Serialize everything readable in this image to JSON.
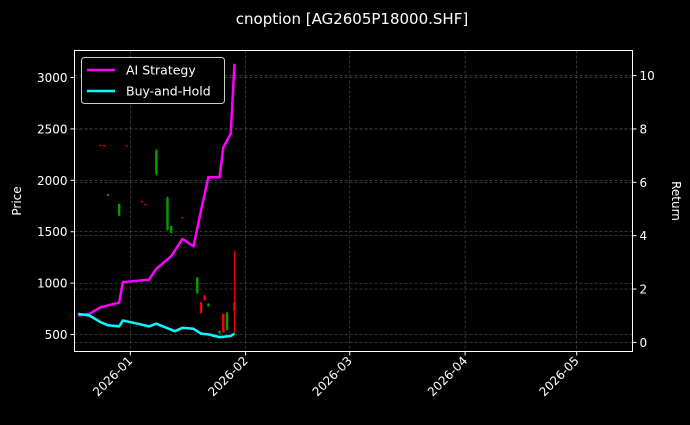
{
  "chart_data": {
    "type": "line",
    "title": "cnoption [AG2605P18000.SHF]",
    "xlabel": "",
    "ylabel_left": "Price",
    "ylabel_right": "Return",
    "xlim": [
      "2025-12-17",
      "2026-05-16"
    ],
    "ylim_left": [
      335,
      3263
    ],
    "ylim_right": [
      -0.34,
      10.94
    ],
    "grid": true,
    "legend_position": "top-left",
    "x_ticks": [
      "2026-01-01",
      "2026-02-01",
      "2026-03-01",
      "2026-04-01",
      "2026-05-01"
    ],
    "x_tick_labels": [
      "2026-01",
      "2026-02",
      "2026-03",
      "2026-04",
      "2026-05"
    ],
    "y_left_ticks": [
      500,
      1000,
      1500,
      2000,
      2500,
      3000
    ],
    "y_left_tick_labels": [
      "500",
      "1000",
      "1500",
      "2000",
      "2500",
      "3000"
    ],
    "y_right_ticks": [
      0,
      2,
      4,
      6,
      8,
      10
    ],
    "y_right_tick_labels": [
      "0",
      "2",
      "4",
      "6",
      "8",
      "10"
    ],
    "series": [
      {
        "name": "AI Strategy",
        "color": "#ff00ff",
        "axis": "right",
        "x": [
          "2025-12-18",
          "2025-12-21",
          "2025-12-24",
          "2025-12-29",
          "2025-12-30",
          "2026-01-06",
          "2026-01-08",
          "2026-01-12",
          "2026-01-15",
          "2026-01-18",
          "2026-01-20",
          "2026-01-22",
          "2026-01-25",
          "2026-01-26",
          "2026-01-28",
          "2026-01-29"
        ],
        "values": [
          1.01,
          1.07,
          1.32,
          1.49,
          2.26,
          2.35,
          2.76,
          3.23,
          3.88,
          3.6,
          4.94,
          6.19,
          6.19,
          7.31,
          7.82,
          10.44
        ]
      },
      {
        "name": "Buy-and-Hold",
        "color": "#00ffff",
        "axis": "right",
        "x": [
          "2025-12-18",
          "2025-12-21",
          "2025-12-24",
          "2025-12-26",
          "2025-12-29",
          "2025-12-30",
          "2026-01-03",
          "2026-01-06",
          "2026-01-08",
          "2026-01-13",
          "2026-01-15",
          "2026-01-18",
          "2026-01-20",
          "2026-01-22",
          "2026-01-25",
          "2026-01-28",
          "2026-01-29"
        ],
        "values": [
          1.07,
          1.01,
          0.76,
          0.64,
          0.6,
          0.82,
          0.7,
          0.6,
          0.7,
          0.42,
          0.55,
          0.51,
          0.33,
          0.3,
          0.2,
          0.24,
          0.33
        ]
      }
    ],
    "candles": {
      "axis": "left",
      "up_color": "#00a000",
      "down_color": "#ff0000",
      "data": [
        {
          "date": "2025-12-24",
          "open": 2342,
          "high": 2345,
          "low": 2333,
          "close": 2335
        },
        {
          "date": "2025-12-25",
          "open": 2340,
          "high": 2343,
          "low": 2332,
          "close": 2334
        },
        {
          "date": "2025-12-26",
          "open": 1850,
          "high": 1870,
          "low": 1848,
          "close": 1865
        },
        {
          "date": "2025-12-29",
          "open": 1657,
          "high": 1775,
          "low": 1650,
          "close": 1770
        },
        {
          "date": "2025-12-31",
          "open": 2338,
          "high": 2340,
          "low": 2330,
          "close": 2333
        },
        {
          "date": "2026-01-04",
          "open": 1797,
          "high": 1800,
          "low": 1790,
          "close": 1792
        },
        {
          "date": "2026-01-05",
          "open": 1768,
          "high": 1770,
          "low": 1760,
          "close": 1762
        },
        {
          "date": "2026-01-08",
          "open": 2060,
          "high": 2309,
          "low": 2047,
          "close": 2290
        },
        {
          "date": "2026-01-11",
          "open": 1520,
          "high": 1843,
          "low": 1510,
          "close": 1830
        },
        {
          "date": "2026-01-12",
          "open": 1490,
          "high": 1560,
          "low": 1482,
          "close": 1555
        },
        {
          "date": "2026-01-15",
          "open": 1640,
          "high": 1642,
          "low": 1634,
          "close": 1636
        },
        {
          "date": "2026-01-19",
          "open": 900,
          "high": 1059,
          "low": 896,
          "close": 1055
        },
        {
          "date": "2026-01-20",
          "open": 814,
          "high": 820,
          "low": 704,
          "close": 710
        },
        {
          "date": "2026-01-21",
          "open": 880,
          "high": 884,
          "low": 831,
          "close": 835
        },
        {
          "date": "2026-01-22",
          "open": 775,
          "high": 804,
          "low": 772,
          "close": 800
        },
        {
          "date": "2026-01-25",
          "open": 512,
          "high": 539,
          "low": 510,
          "close": 536
        },
        {
          "date": "2026-01-26",
          "open": 700,
          "high": 704,
          "low": 519,
          "close": 525
        },
        {
          "date": "2026-01-27",
          "open": 545,
          "high": 717,
          "low": 539,
          "close": 712
        },
        {
          "date": "2026-01-29",
          "open": 814,
          "high": 1317,
          "low": 519,
          "close": 733
        }
      ]
    }
  }
}
